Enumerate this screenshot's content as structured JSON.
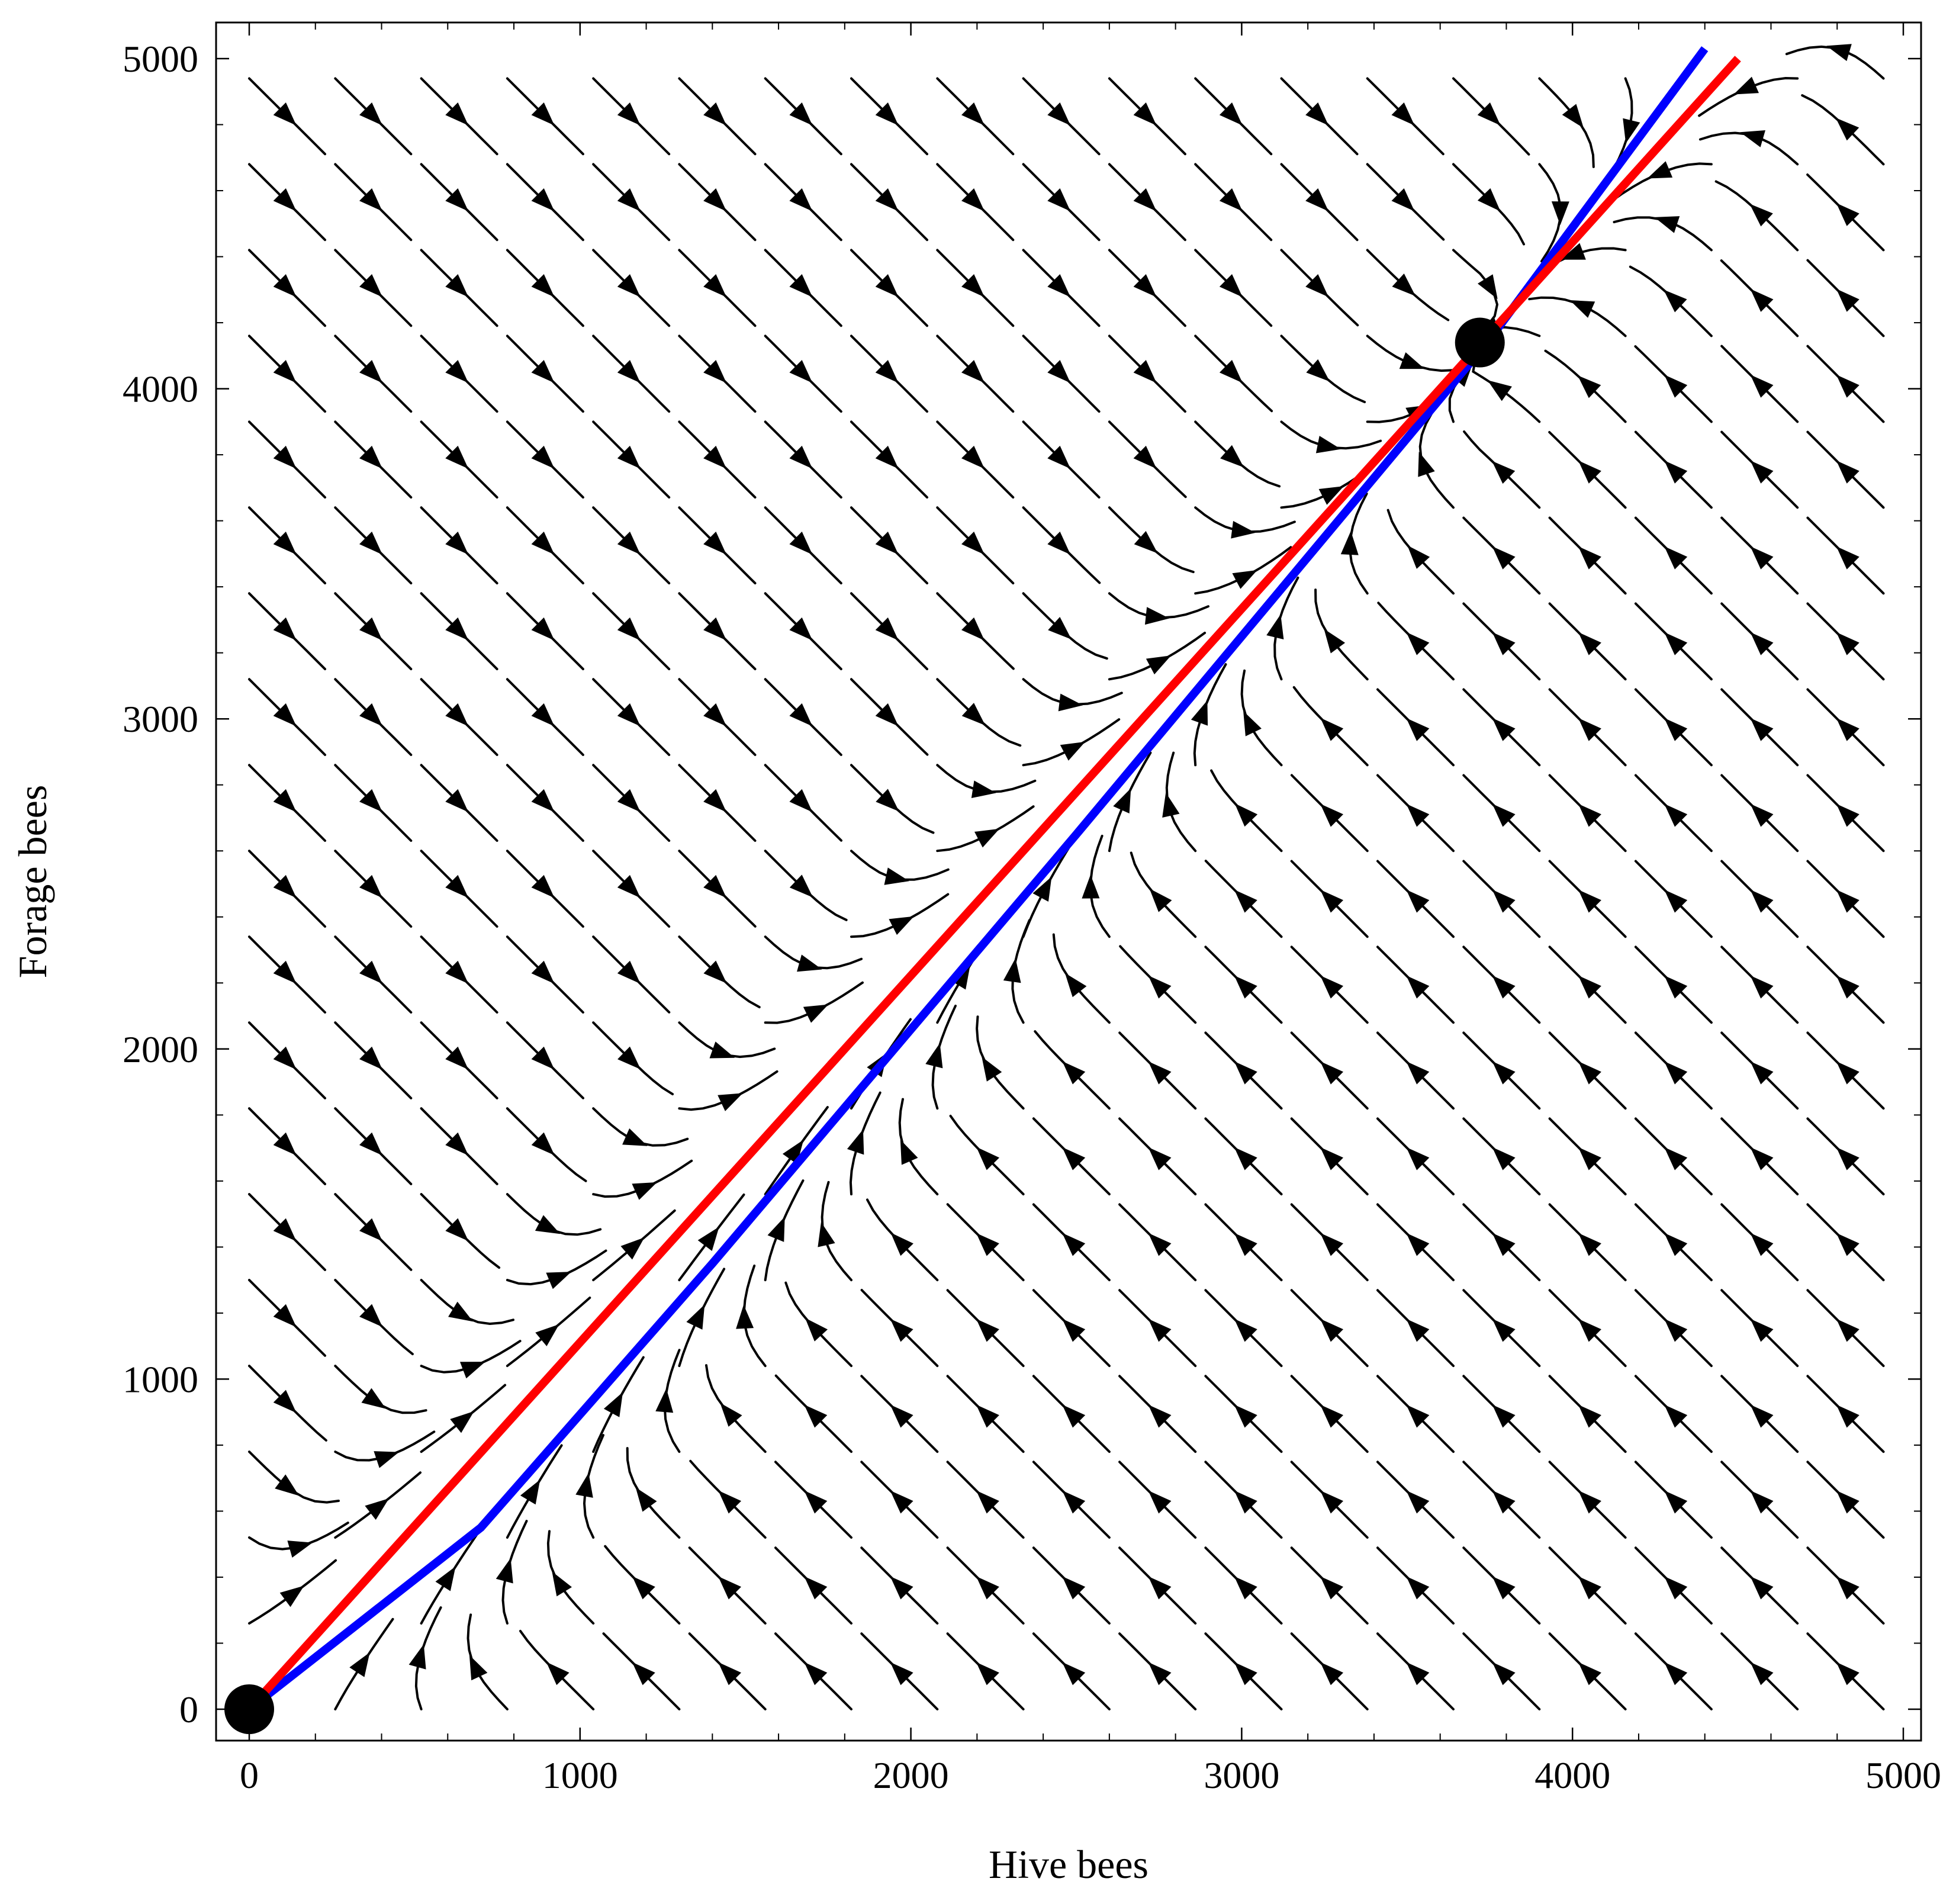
{
  "chart_data": {
    "type": "line",
    "subtype": "phase-portrait-streamplot",
    "xlabel": "Hive bees",
    "ylabel": "Forage bees",
    "xlim": [
      0,
      5000
    ],
    "ylim": [
      0,
      5000
    ],
    "xticks": [
      0,
      1000,
      2000,
      3000,
      4000,
      5000
    ],
    "yticks": [
      0,
      1000,
      2000,
      3000,
      4000,
      5000
    ],
    "x_tick_labels": [
      "0",
      "1000",
      "2000",
      "3000",
      "4000",
      "5000"
    ],
    "y_tick_labels": [
      "0",
      "1000",
      "2000",
      "3000",
      "4000",
      "5000"
    ],
    "grid": false,
    "frame_ticks": true,
    "series": [
      {
        "color": "#ff0000",
        "x": [
          0,
          4500
        ],
        "y": [
          0,
          5000
        ]
      },
      {
        "color": "#0000ff",
        "x": [
          0,
          700,
          1400,
          2500,
          3750,
          4400
        ],
        "y": [
          0,
          550,
          1350,
          2650,
          4150,
          5030
        ]
      }
    ],
    "equilibria": [
      {
        "x": 0,
        "y": 0
      },
      {
        "x": 3720,
        "y": 4140
      }
    ],
    "flow_field": {
      "color": "#000000",
      "description_of_flow": "streamlines converge toward the red nullcline; above it they point down-right, below it up-left, then travel along it to the upper equilibrium"
    }
  }
}
